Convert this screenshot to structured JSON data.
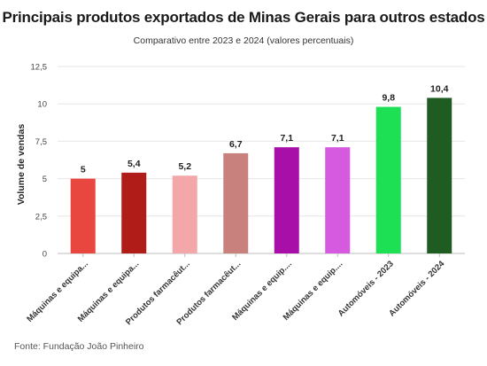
{
  "chart_data": {
    "type": "bar",
    "title": "Principais produtos exportados de Minas Gerais para outros estados",
    "subtitle": "Comparativo entre 2023 e 2024 (valores percentuais)",
    "ylabel": "Volume de vendas",
    "xlabel": "",
    "ylim": [
      0,
      12.5
    ],
    "yticks": [
      "0",
      "2,5",
      "5",
      "7,5",
      "10",
      "12,5"
    ],
    "ytick_values": [
      0,
      2.5,
      5,
      7.5,
      10,
      12.5
    ],
    "categories": [
      "Máquinas e equipa...",
      "Máquinas e equipa...",
      "Produtos farmacêut...",
      "Produtos farmacêut...",
      "Máquinas e equip....",
      "Máquinas e equip....",
      "Automóveis - 2023",
      "Automóveis - 2024"
    ],
    "values": [
      5,
      5.4,
      5.2,
      6.7,
      7.1,
      7.1,
      9.8,
      10.4
    ],
    "value_labels": [
      "5",
      "5,4",
      "5,2",
      "6,7",
      "7,1",
      "7,1",
      "9,8",
      "10,4"
    ],
    "colors": [
      "#e8473f",
      "#b01c18",
      "#f4a7a9",
      "#c9817d",
      "#a80fa8",
      "#d65ae0",
      "#1de054",
      "#1f5c22"
    ],
    "grid": true,
    "legend": "none"
  },
  "source": "Fonte: Fundação João Pinheiro"
}
